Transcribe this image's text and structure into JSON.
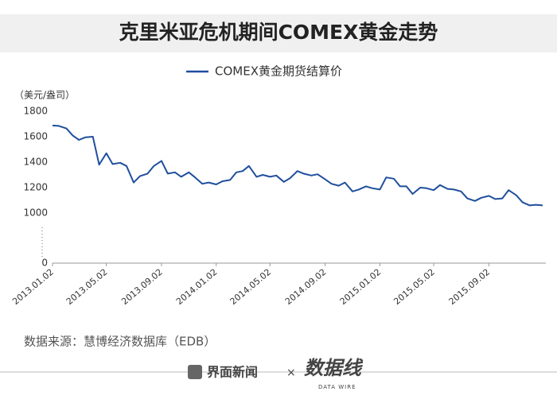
{
  "chart_data": {
    "type": "line",
    "title": "克里米亚危机期间COMEX黄金走势",
    "y_unit": "（美元/盎司）",
    "x": [
      "2013.01.02",
      "2013.01.16",
      "2013.02.02",
      "2013.02.16",
      "2013.03.02",
      "2013.03.16",
      "2013.04.02",
      "2013.04.16",
      "2013.05.02",
      "2013.05.16",
      "2013.06.02",
      "2013.06.16",
      "2013.07.02",
      "2013.07.16",
      "2013.08.02",
      "2013.08.16",
      "2013.09.02",
      "2013.09.16",
      "2013.10.02",
      "2013.10.16",
      "2013.11.02",
      "2013.11.16",
      "2013.12.02",
      "2013.12.16",
      "2014.01.02",
      "2014.01.16",
      "2014.02.02",
      "2014.02.16",
      "2014.03.02",
      "2014.03.16",
      "2014.04.02",
      "2014.04.16",
      "2014.05.02",
      "2014.05.16",
      "2014.06.02",
      "2014.06.16",
      "2014.07.02",
      "2014.07.16",
      "2014.08.02",
      "2014.08.16",
      "2014.09.02",
      "2014.09.16",
      "2014.10.02",
      "2014.10.16",
      "2014.11.02",
      "2014.11.16",
      "2014.12.02",
      "2014.12.16",
      "2015.01.02",
      "2015.01.16",
      "2015.02.02",
      "2015.02.16",
      "2015.03.02",
      "2015.03.16",
      "2015.04.02",
      "2015.04.16",
      "2015.05.02",
      "2015.05.16",
      "2015.06.02",
      "2015.06.16",
      "2015.07.02",
      "2015.07.16",
      "2015.08.02",
      "2015.08.16",
      "2015.09.02",
      "2015.09.16",
      "2015.10.02",
      "2015.10.16",
      "2015.11.02",
      "2015.11.16",
      "2015.12.02",
      "2015.12.16",
      "2015.12.31"
    ],
    "series": [
      {
        "name": "COMEX黄金期货结算价",
        "color": "#1f4f9d",
        "values": [
          1688,
          1685,
          1665,
          1610,
          1575,
          1595,
          1600,
          1380,
          1470,
          1385,
          1395,
          1370,
          1240,
          1290,
          1310,
          1370,
          1410,
          1310,
          1320,
          1285,
          1320,
          1280,
          1230,
          1240,
          1225,
          1250,
          1260,
          1320,
          1330,
          1370,
          1285,
          1300,
          1285,
          1295,
          1245,
          1275,
          1330,
          1310,
          1295,
          1305,
          1265,
          1230,
          1215,
          1240,
          1170,
          1185,
          1210,
          1195,
          1185,
          1280,
          1270,
          1210,
          1210,
          1150,
          1200,
          1195,
          1180,
          1220,
          1190,
          1185,
          1170,
          1115,
          1095,
          1120,
          1135,
          1110,
          1115,
          1180,
          1140,
          1085,
          1060,
          1065,
          1060
        ]
      }
    ],
    "xlim": [
      "2013.01.02",
      "2015.12.31"
    ],
    "xticks": [
      "2013.01.02",
      "2013.05.02",
      "2013.09.02",
      "2014.01.02",
      "2014.05.02",
      "2014.09.02",
      "2015.01.02",
      "2015.05.02",
      "2015.09.02"
    ],
    "ylim": [
      0,
      1800
    ],
    "axis_break": [
      0,
      1000
    ],
    "yticks": [
      0,
      1000,
      1200,
      1400,
      1600,
      1800
    ]
  },
  "source": "数据来源：慧博经济数据库（EDB）",
  "footer": {
    "brand": "界面新闻",
    "cross": "×",
    "partner": "数据线",
    "partner_en": "DATA WIRE"
  }
}
